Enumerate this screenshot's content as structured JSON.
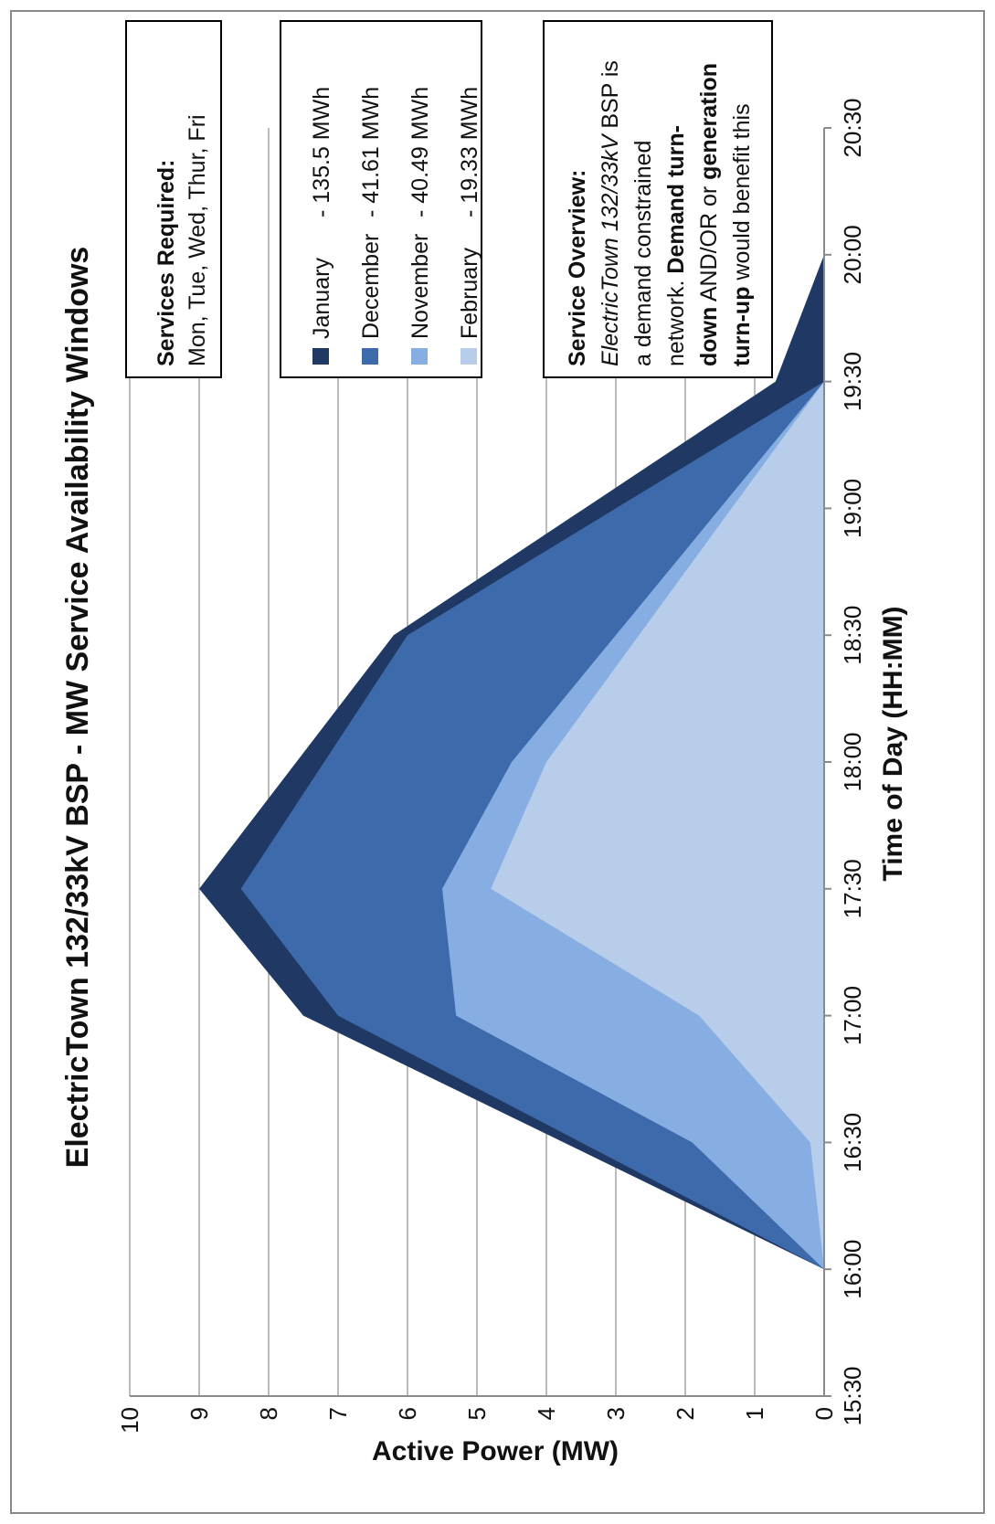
{
  "chart_data": {
    "type": "area",
    "title": "ElectricTown 132/33kV BSP - MW Service Availability Windows",
    "xlabel": "Time of Day (HH:MM)",
    "ylabel": "Active Power (MW)",
    "ylim": [
      0,
      10
    ],
    "yticks": [
      0,
      1,
      2,
      3,
      4,
      5,
      6,
      7,
      8,
      9,
      10
    ],
    "xticks": [
      "15:30",
      "16:00",
      "16:30",
      "17:00",
      "17:30",
      "18:00",
      "18:30",
      "19:00",
      "19:30",
      "20:00",
      "20:30"
    ],
    "grid": true,
    "legend_position": "right",
    "series": [
      {
        "name": "January",
        "label": "- 135.5 MWh",
        "color": "#1f3864",
        "points": [
          [
            "16:00",
            0
          ],
          [
            "17:00",
            7.5
          ],
          [
            "17:30",
            9.0
          ],
          [
            "18:30",
            6.2
          ],
          [
            "19:30",
            0.7
          ],
          [
            "20:00",
            0
          ]
        ]
      },
      {
        "name": "December",
        "label": "- 41.61 MWh",
        "color": "#3c6aaa",
        "points": [
          [
            "16:00",
            0
          ],
          [
            "17:00",
            7.0
          ],
          [
            "17:30",
            8.4
          ],
          [
            "18:30",
            6.0
          ],
          [
            "19:30",
            0
          ]
        ]
      },
      {
        "name": "November",
        "label": "- 40.49 MWh",
        "color": "#87aee3",
        "points": [
          [
            "16:00",
            0
          ],
          [
            "16:30",
            1.9
          ],
          [
            "17:00",
            5.3
          ],
          [
            "17:30",
            5.5
          ],
          [
            "18:00",
            4.5
          ],
          [
            "19:30",
            0
          ]
        ]
      },
      {
        "name": "February",
        "label": "- 19.33 MWh",
        "color": "#b7cde9",
        "points": [
          [
            "16:00",
            0
          ],
          [
            "16:30",
            0.2
          ],
          [
            "17:00",
            1.8
          ],
          [
            "17:30",
            4.8
          ],
          [
            "18:00",
            4.0
          ],
          [
            "19:30",
            0
          ]
        ]
      }
    ]
  },
  "services_box": {
    "heading": "Services Required:",
    "days": "Mon, Tue, Wed, Thur, Fri"
  },
  "overview_box": {
    "heading": "Service Overview:",
    "line1_italic": "ElectricTown 132/33kV",
    "line1_rest": " BSP is",
    "line2": "a demand constrained",
    "line3_normal": "network. ",
    "line3_bold": "Demand turn-",
    "line4_bold": "down",
    "line4_rest": " AND/OR or ",
    "line4_bold2": "generation",
    "line5_bold": "turn-up",
    "line5_rest": " would benefit this"
  }
}
